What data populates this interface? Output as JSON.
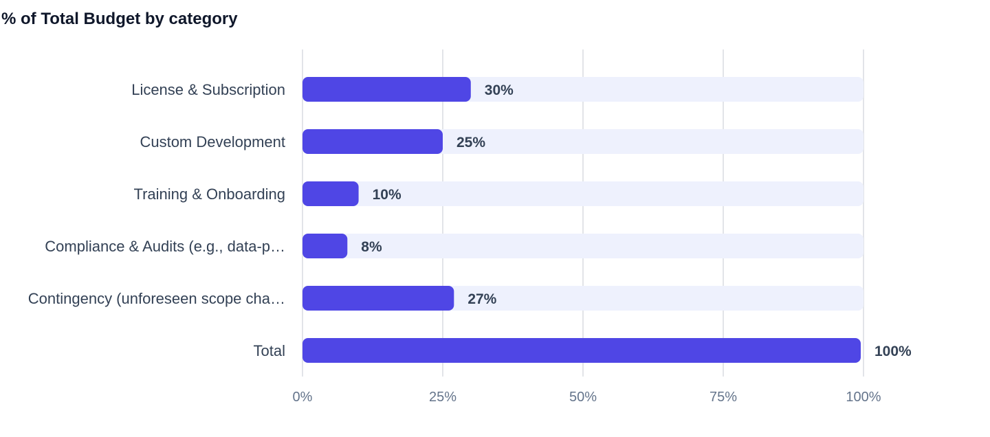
{
  "chart_data": {
    "type": "bar",
    "orientation": "horizontal",
    "title": "% of Total Budget by category",
    "categories": [
      "License & Subscription",
      "Custom Development",
      "Training & Onboarding",
      "Compliance & Audits (e.g., data-p…",
      "Contingency (unforeseen scope cha…",
      "Total"
    ],
    "values": [
      30,
      25,
      10,
      8,
      27,
      100
    ],
    "value_labels": [
      "30%",
      "25%",
      "10%",
      "8%",
      "27%",
      "100%"
    ],
    "xlim": [
      0,
      100
    ],
    "xticks": [
      0,
      25,
      50,
      75,
      100
    ],
    "xtick_labels": [
      "0%",
      "25%",
      "50%",
      "75%",
      "100%"
    ],
    "xlabel": "",
    "ylabel": "",
    "grid": true,
    "legend": "none",
    "colors": {
      "bar": "#4f46e5",
      "track": "#eef1fd",
      "grid": "#e2e4e8",
      "label": "#334155",
      "tick": "#64748b",
      "title": "#0f172a"
    }
  }
}
